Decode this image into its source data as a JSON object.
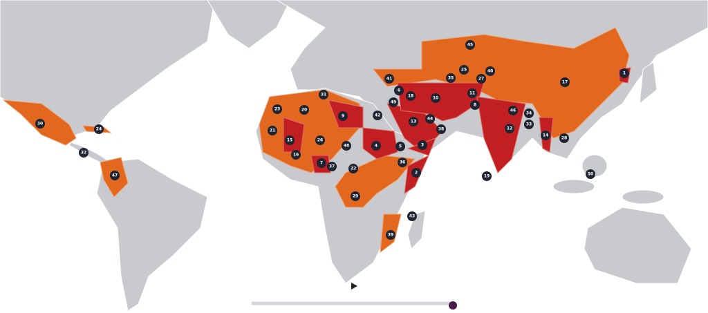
{
  "markers": [
    45,
    1,
    17,
    25,
    40,
    27,
    35,
    41,
    6,
    18,
    10,
    11,
    8,
    49,
    42,
    31,
    23,
    20,
    9,
    13,
    44,
    38,
    46,
    34,
    33,
    12,
    14,
    28,
    30,
    24,
    21,
    15,
    26,
    48,
    4,
    5,
    3,
    16,
    7,
    37,
    22,
    36,
    2,
    19,
    50,
    32,
    47,
    29,
    43,
    39
  ]
}
